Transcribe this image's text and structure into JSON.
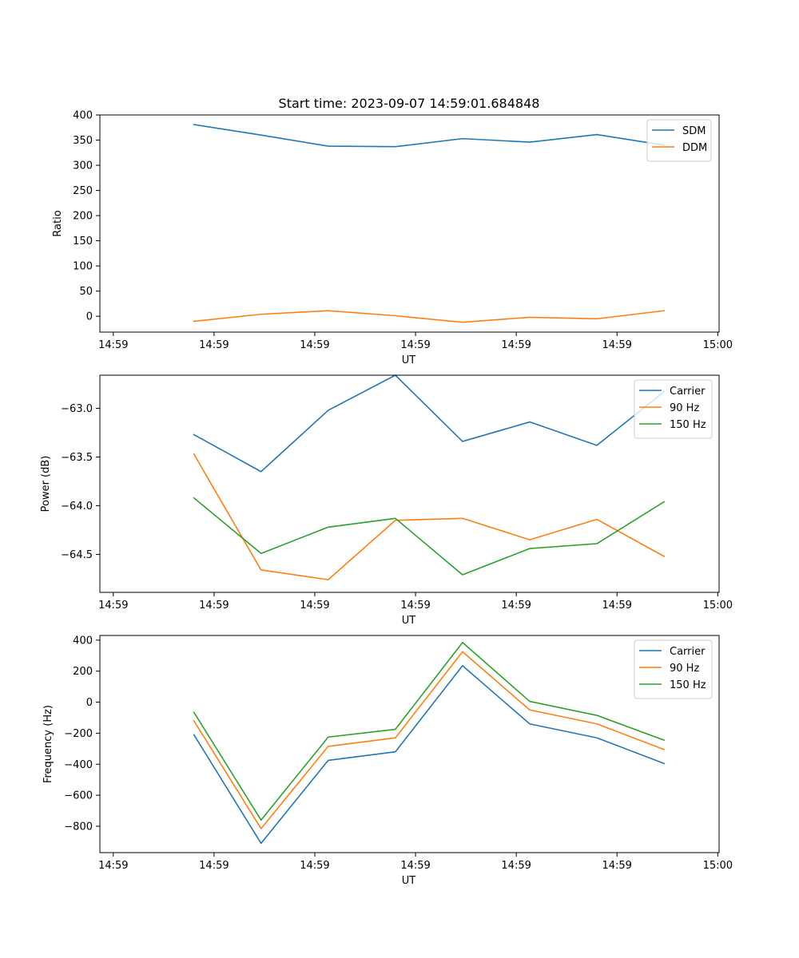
{
  "figure": {
    "title": "Start time: 2023-09-07 14:59:01.684848"
  },
  "colors": {
    "blue": "#1f77b4",
    "orange": "#ff7f0e",
    "green": "#2ca02c",
    "axis": "#000000",
    "legend_border": "#cccccc"
  },
  "chart_data": [
    {
      "type": "line",
      "title": "Start time: 2023-09-07 14:59:01.684848",
      "xlabel": "UT",
      "ylabel": "Ratio",
      "x": [
        0.6,
        1.1,
        1.6,
        2.1,
        2.6,
        3.1,
        3.6,
        4.1
      ],
      "x_ticks": [
        0,
        0.75,
        1.5,
        2.25,
        3,
        3.75,
        4.5
      ],
      "x_tick_labels": [
        "14:59",
        "14:59",
        "14:59",
        "14:59",
        "14:59",
        "14:59",
        "15:00"
      ],
      "xlim": [
        -0.1,
        4.51
      ],
      "y_ticks": [
        0,
        50,
        100,
        150,
        200,
        250,
        300,
        350,
        400
      ],
      "y_tick_labels": [
        "0",
        "50",
        "100",
        "150",
        "200",
        "250",
        "300",
        "350",
        "400"
      ],
      "ylim": [
        -31.5,
        400
      ],
      "legend_position": "top-right",
      "series": [
        {
          "name": "SDM",
          "color": "#1f77b4",
          "values": [
            381,
            360,
            338,
            337,
            353,
            346,
            361,
            340
          ]
        },
        {
          "name": "DDM",
          "color": "#ff7f0e",
          "values": [
            -10,
            4,
            11,
            1,
            -12,
            -2,
            -5,
            11
          ]
        }
      ]
    },
    {
      "type": "line",
      "title": "",
      "xlabel": "UT",
      "ylabel": "Power (dB)",
      "x": [
        0.6,
        1.1,
        1.6,
        2.1,
        2.6,
        3.1,
        3.6,
        4.1
      ],
      "x_ticks": [
        0,
        0.75,
        1.5,
        2.25,
        3,
        3.75,
        4.5
      ],
      "x_tick_labels": [
        "14:59",
        "14:59",
        "14:59",
        "14:59",
        "14:59",
        "14:59",
        "15:00"
      ],
      "xlim": [
        -0.1,
        4.51
      ],
      "y_ticks": [
        -63.0,
        -63.5,
        -64.0,
        -64.5
      ],
      "y_tick_labels": [
        "−63.0",
        "−63.5",
        "−64.0",
        "−64.5"
      ],
      "ylim": [
        -64.89,
        -62.66
      ],
      "legend_position": "top-right",
      "series": [
        {
          "name": "Carrier",
          "color": "#1f77b4",
          "values": [
            -63.27,
            -63.65,
            -63.02,
            -62.66,
            -63.34,
            -63.14,
            -63.38,
            -62.83
          ]
        },
        {
          "name": "90 Hz",
          "color": "#ff7f0e",
          "values": [
            -63.47,
            -64.66,
            -64.76,
            -64.15,
            -64.13,
            -64.35,
            -64.14,
            -64.52
          ]
        },
        {
          "name": "150 Hz",
          "color": "#2ca02c",
          "values": [
            -63.92,
            -64.49,
            -64.22,
            -64.13,
            -64.71,
            -64.44,
            -64.39,
            -63.96
          ]
        }
      ]
    },
    {
      "type": "line",
      "title": "",
      "xlabel": "UT",
      "ylabel": "Frequency (Hz)",
      "x": [
        0.6,
        1.1,
        1.6,
        2.1,
        2.6,
        3.1,
        3.6,
        4.1
      ],
      "x_ticks": [
        0,
        0.75,
        1.5,
        2.25,
        3,
        3.75,
        4.5
      ],
      "x_tick_labels": [
        "14:59",
        "14:59",
        "14:59",
        "14:59",
        "14:59",
        "14:59",
        "15:00"
      ],
      "xlim": [
        -0.1,
        4.51
      ],
      "y_ticks": [
        400,
        200,
        0,
        -200,
        -400,
        -600,
        -800
      ],
      "y_tick_labels": [
        "400",
        "200",
        "0",
        "−200",
        "−400",
        "−600",
        "−800"
      ],
      "ylim": [
        -970,
        430
      ],
      "legend_position": "top-right",
      "series": [
        {
          "name": "Carrier",
          "color": "#1f77b4",
          "values": [
            -210,
            -910,
            -375,
            -320,
            235,
            -140,
            -230,
            -395
          ]
        },
        {
          "name": "90 Hz",
          "color": "#ff7f0e",
          "values": [
            -120,
            -815,
            -285,
            -230,
            325,
            -50,
            -140,
            -305
          ]
        },
        {
          "name": "150 Hz",
          "color": "#2ca02c",
          "values": [
            -65,
            -760,
            -225,
            -175,
            385,
            5,
            -85,
            -245
          ]
        }
      ]
    }
  ]
}
